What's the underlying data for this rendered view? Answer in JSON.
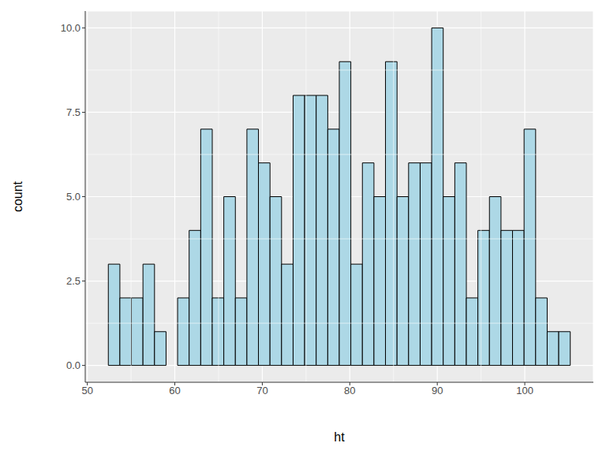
{
  "chart_data": {
    "type": "histogram",
    "xlabel": "ht",
    "ylabel": "count",
    "bins": [
      52.4,
      53.72,
      55.04,
      56.36,
      57.68,
      59.0,
      60.32,
      61.64,
      62.96,
      64.28,
      65.6,
      66.92,
      68.24,
      69.56,
      70.88,
      72.2,
      73.52,
      74.84,
      76.16,
      77.48,
      78.8,
      80.12,
      81.44,
      82.76,
      84.08,
      85.4,
      86.72,
      88.04,
      89.36,
      90.68,
      92.0,
      93.32,
      94.64,
      95.96,
      97.28,
      98.6,
      99.92,
      101.24,
      102.56,
      103.88,
      105.2
    ],
    "counts": [
      3,
      2,
      2,
      3,
      1,
      0,
      2,
      4,
      7,
      2,
      5,
      2,
      7,
      6,
      5,
      3,
      8,
      8,
      8,
      7,
      9,
      3,
      6,
      5,
      9,
      5,
      6,
      6,
      10,
      5,
      6,
      2,
      4,
      5,
      4,
      4,
      7,
      2,
      1,
      1
    ],
    "color": "#ADD8E6",
    "xlim": [
      49.76,
      107.84
    ],
    "ylim": [
      -0.5,
      10.5
    ],
    "xticks": [
      50,
      60,
      70,
      80,
      90,
      100
    ],
    "yticks": [
      {
        "value": 0,
        "label": "0.0"
      },
      {
        "value": 2.5,
        "label": "2.5"
      },
      {
        "value": 5,
        "label": "5.0"
      },
      {
        "value": 7.5,
        "label": "7.5"
      },
      {
        "value": 10,
        "label": "10.0"
      }
    ],
    "grid": true
  }
}
